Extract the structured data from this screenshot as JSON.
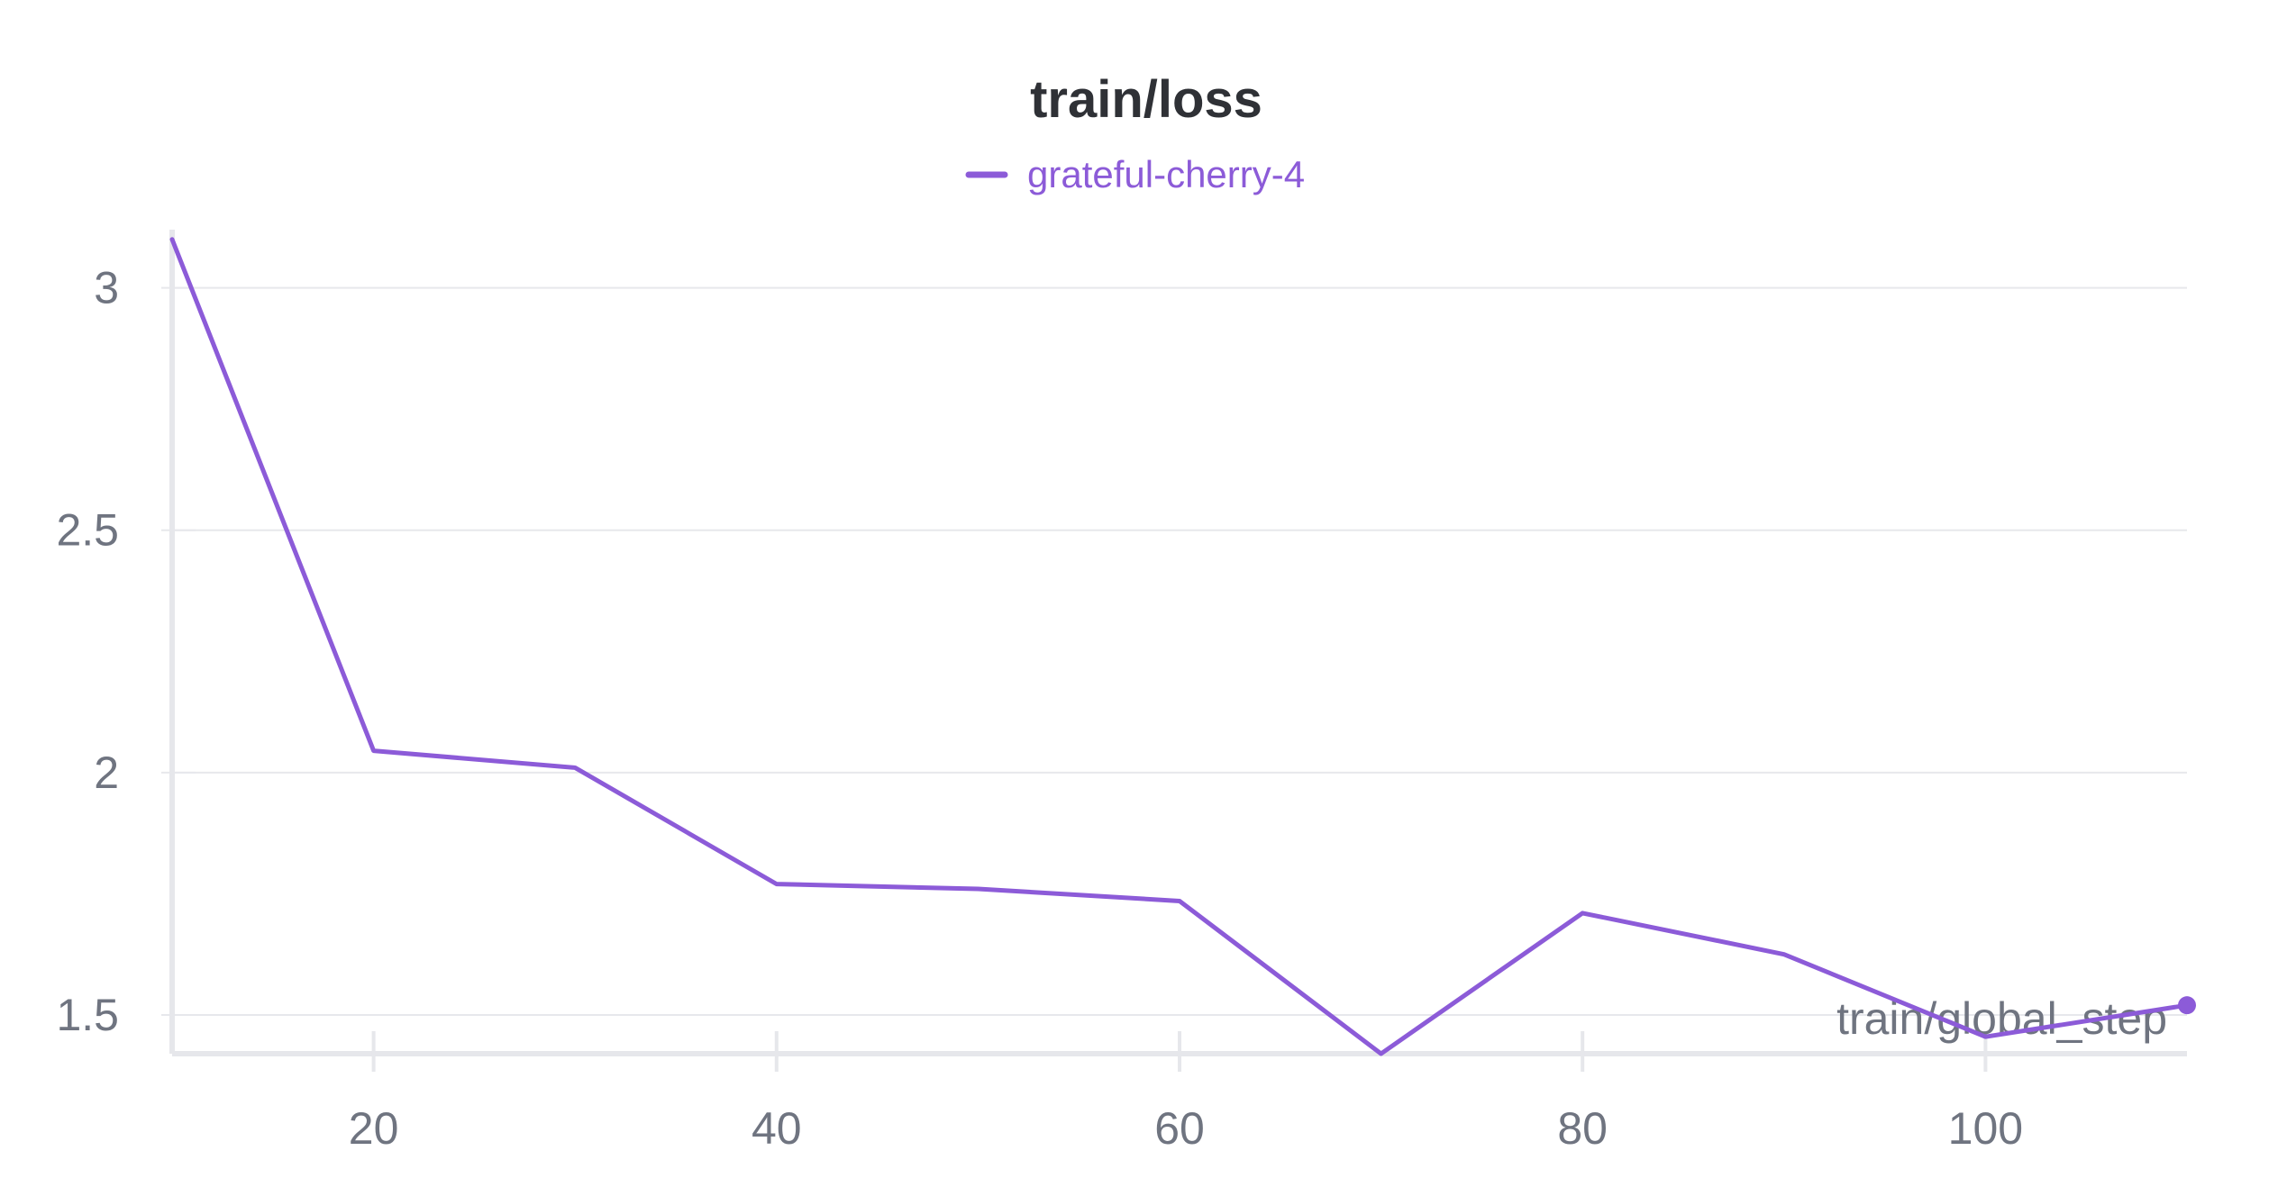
{
  "chart_data": {
    "type": "line",
    "title": "train/loss",
    "xlabel": "train/global_step",
    "ylabel": "",
    "xlim": [
      10,
      110
    ],
    "ylim": [
      1.42,
      3.12
    ],
    "x_ticks": [
      20,
      40,
      60,
      80,
      100
    ],
    "x_tick_labels": [
      "20",
      "40",
      "60",
      "80",
      "100"
    ],
    "y_ticks": [
      3,
      2.5,
      2,
      1.5
    ],
    "y_tick_labels": [
      "3",
      "2.5",
      "2",
      "1.5"
    ],
    "grid": true,
    "legend_position": "top-center",
    "series": [
      {
        "name": "grateful-cherry-4",
        "color": "#8c5bd8",
        "x": [
          10,
          20,
          30,
          40,
          50,
          60,
          70,
          80,
          90,
          100,
          110
        ],
        "values": [
          3.1,
          2.045,
          2.01,
          1.77,
          1.76,
          1.735,
          1.42,
          1.71,
          1.625,
          1.455,
          1.52
        ]
      }
    ]
  }
}
